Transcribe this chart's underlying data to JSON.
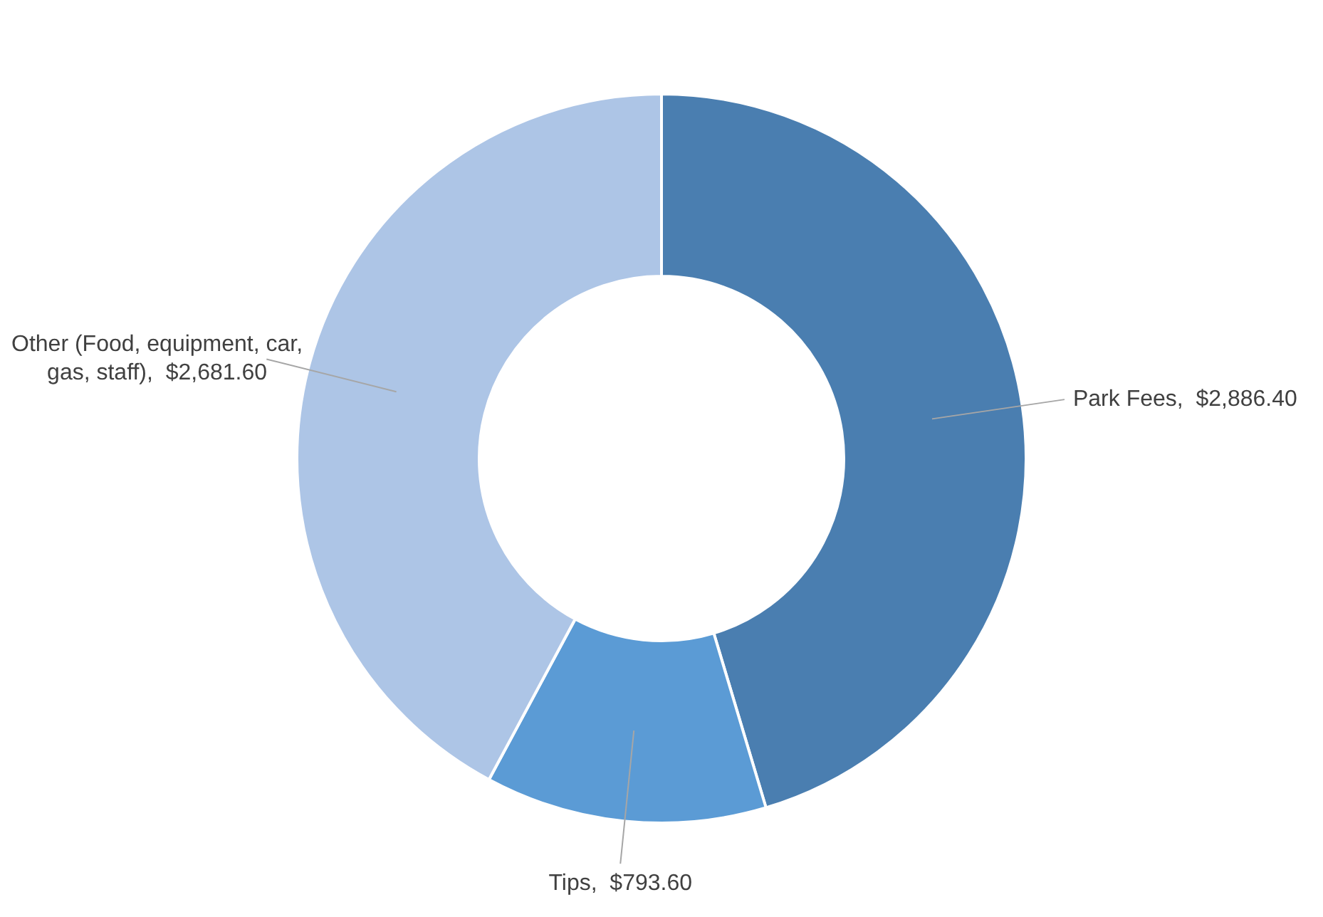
{
  "chart_data": {
    "type": "donut",
    "categories": [
      "Park Fees",
      "Tips",
      "Other (Food, equipment, car, gas, staff)"
    ],
    "values": [
      2886.4,
      793.6,
      2681.6
    ],
    "colors": [
      "#4a7eb0",
      "#5b9bd5",
      "#adc5e6"
    ],
    "value_labels": [
      "$2,886.40",
      "$793.60",
      "$2,681.60"
    ],
    "legend": false
  }
}
